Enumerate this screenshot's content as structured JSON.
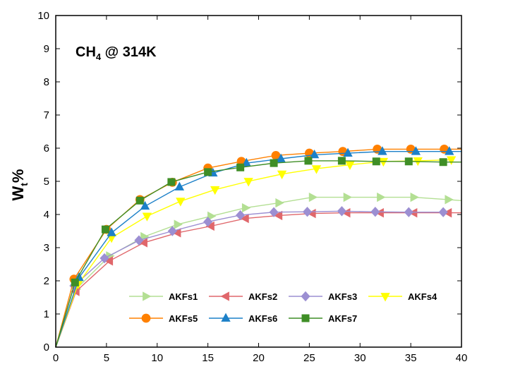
{
  "chart_data": {
    "type": "line",
    "annotation": {
      "main": "CH",
      "sub": "4",
      "rest": " @ 314K"
    },
    "ylabel": {
      "main": "W",
      "sub": "t",
      "rest": "%"
    },
    "xlabel": "",
    "xlim": [
      0,
      40
    ],
    "ylim": [
      0,
      10
    ],
    "xticks": [
      0,
      5,
      10,
      15,
      20,
      25,
      30,
      35,
      40
    ],
    "yticks": [
      0,
      1,
      2,
      3,
      4,
      5,
      6,
      7,
      8,
      9,
      10
    ],
    "grid": false,
    "legend_position": "lower-right",
    "series": [
      {
        "name": "AKFs1",
        "color": "#b3df93",
        "marker": "triangle-right",
        "x": [
          0,
          2.0,
          5.3,
          8.7,
          12.0,
          15.3,
          18.7,
          22.0,
          25.3,
          28.7,
          32.0,
          35.3,
          38.7,
          40
        ],
        "y": [
          0,
          1.75,
          2.75,
          3.33,
          3.7,
          3.95,
          4.2,
          4.35,
          4.52,
          4.52,
          4.52,
          4.52,
          4.45,
          4.42
        ]
      },
      {
        "name": "AKFs2",
        "color": "#e0676b",
        "marker": "triangle-left",
        "x": [
          0,
          2.0,
          5.3,
          8.7,
          12.0,
          15.3,
          18.7,
          22.0,
          25.3,
          28.7,
          32.0,
          35.3,
          38.7,
          40
        ],
        "y": [
          0,
          1.68,
          2.6,
          3.15,
          3.45,
          3.65,
          3.88,
          3.97,
          4.03,
          4.05,
          4.05,
          4.05,
          4.05,
          4.05
        ]
      },
      {
        "name": "AKFs3",
        "color": "#9c8fd2",
        "marker": "diamond",
        "x": [
          0,
          1.8,
          4.8,
          8.2,
          11.5,
          15.0,
          18.2,
          21.5,
          24.8,
          28.2,
          31.5,
          34.8,
          38.2
        ],
        "y": [
          0,
          1.85,
          2.68,
          3.22,
          3.5,
          3.78,
          3.98,
          4.07,
          4.08,
          4.1,
          4.08,
          4.07,
          4.07
        ]
      },
      {
        "name": "AKFs4",
        "color": "#ffff00",
        "marker": "triangle-down",
        "x": [
          0,
          2.2,
          5.5,
          9.0,
          12.3,
          15.7,
          19.0,
          22.3,
          25.7,
          29.0,
          32.3,
          35.7,
          39.0
        ],
        "y": [
          0,
          1.9,
          3.3,
          3.95,
          4.4,
          4.75,
          5.0,
          5.22,
          5.38,
          5.5,
          5.6,
          5.62,
          5.65
        ]
      },
      {
        "name": "AKFs5",
        "color": "#ff8000",
        "marker": "circle",
        "x": [
          0,
          1.8,
          5.0,
          8.3,
          11.5,
          15.0,
          18.3,
          21.7,
          25.0,
          28.3,
          31.7,
          35.0,
          38.3,
          40
        ],
        "y": [
          0,
          2.05,
          3.55,
          4.45,
          4.97,
          5.4,
          5.6,
          5.78,
          5.85,
          5.9,
          5.97,
          5.97,
          5.97,
          5.97
        ]
      },
      {
        "name": "AKFs6",
        "color": "#1c80c8",
        "marker": "triangle-up",
        "x": [
          0,
          2.3,
          5.5,
          8.8,
          12.2,
          15.5,
          18.8,
          22.2,
          25.5,
          28.8,
          32.2,
          35.5,
          38.8,
          40
        ],
        "y": [
          0,
          2.1,
          3.45,
          4.25,
          4.83,
          5.25,
          5.55,
          5.68,
          5.8,
          5.85,
          5.9,
          5.9,
          5.9,
          5.9
        ]
      },
      {
        "name": "AKFs7",
        "color": "#3f8e26",
        "marker": "square",
        "x": [
          0,
          1.9,
          4.9,
          8.3,
          11.4,
          15.0,
          18.2,
          21.5,
          24.9,
          28.2,
          31.6,
          34.8,
          38.2,
          40
        ],
        "y": [
          0,
          1.95,
          3.55,
          4.42,
          4.98,
          5.28,
          5.42,
          5.55,
          5.62,
          5.62,
          5.6,
          5.6,
          5.58,
          5.58
        ]
      }
    ]
  }
}
